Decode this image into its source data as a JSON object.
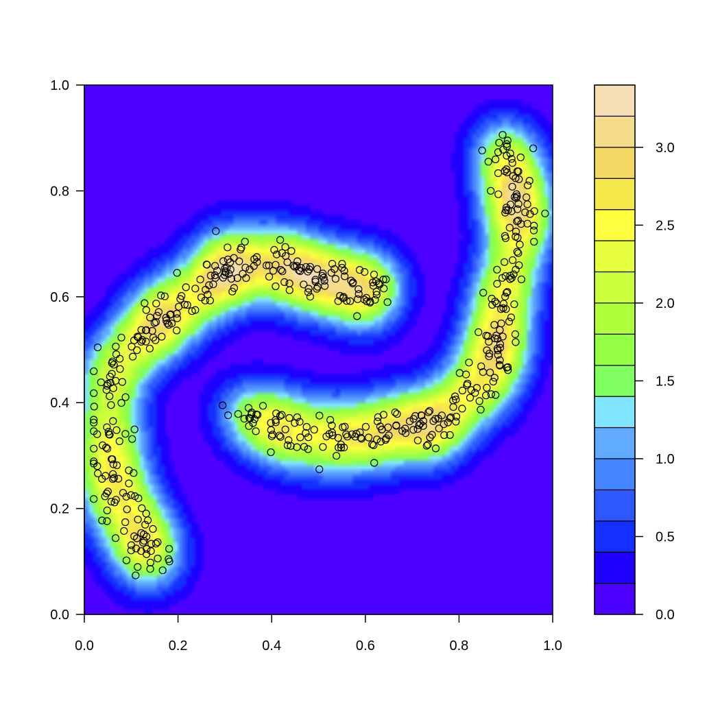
{
  "chart_data": {
    "type": "contour",
    "description_kind": "filled contour of a 2D density estimate with scatter points overlaid",
    "title": "",
    "xlabel": "",
    "ylabel": "",
    "xlim": [
      0,
      1
    ],
    "ylim": [
      0,
      1
    ],
    "x_ticks": [
      "0.0",
      "0.2",
      "0.4",
      "0.6",
      "0.8",
      "1.0"
    ],
    "y_ticks": [
      "0.0",
      "0.2",
      "0.4",
      "0.6",
      "0.8",
      "1.0"
    ],
    "x_tick_values": [
      0,
      0.2,
      0.4,
      0.6,
      0.8,
      1.0
    ],
    "y_tick_values": [
      0,
      0.2,
      0.4,
      0.6,
      0.8,
      1.0
    ],
    "colorbar": {
      "range": [
        0,
        3.4
      ],
      "breaks": [
        0,
        0.2,
        0.4,
        0.6,
        0.8,
        1.0,
        1.2,
        1.4,
        1.6,
        1.8,
        2.0,
        2.2,
        2.4,
        2.6,
        2.8,
        3.0,
        3.2,
        3.4
      ],
      "tick_labels": [
        "0.0",
        "0.5",
        "1.0",
        "1.5",
        "2.0",
        "2.5",
        "3.0"
      ],
      "tick_values": [
        0,
        0.5,
        1.0,
        1.5,
        2.0,
        2.5,
        3.0
      ],
      "colors": [
        "#4c00ff",
        "#1e00ff",
        "#1330ff",
        "#2d58ff",
        "#4585ff",
        "#60aaff",
        "#80e5ff",
        "#80ff60",
        "#95ff45",
        "#b0ff3c",
        "#cbff3b",
        "#e8ff40",
        "#ffff40",
        "#f6e94a",
        "#f3d863",
        "#f4dc8a",
        "#f5deb3"
      ]
    },
    "point_style": {
      "shape": "open circle",
      "color": "#000000"
    },
    "n_points": 560,
    "clusters": [
      {
        "name": "upper arc",
        "centerline": [
          [
            0.04,
            0.42
          ],
          [
            0.07,
            0.48
          ],
          [
            0.12,
            0.53
          ],
          [
            0.18,
            0.57
          ],
          [
            0.24,
            0.61
          ],
          [
            0.3,
            0.65
          ],
          [
            0.36,
            0.66
          ],
          [
            0.42,
            0.66
          ],
          [
            0.48,
            0.64
          ],
          [
            0.54,
            0.62
          ],
          [
            0.6,
            0.61
          ],
          [
            0.65,
            0.61
          ]
        ],
        "points": 200
      },
      {
        "name": "lower-left tail",
        "centerline": [
          [
            0.04,
            0.4
          ],
          [
            0.05,
            0.33
          ],
          [
            0.06,
            0.27
          ],
          [
            0.08,
            0.21
          ],
          [
            0.11,
            0.15
          ],
          [
            0.14,
            0.11
          ],
          [
            0.17,
            0.12
          ]
        ],
        "points": 90
      },
      {
        "name": "lower arc",
        "centerline": [
          [
            0.33,
            0.37
          ],
          [
            0.4,
            0.36
          ],
          [
            0.47,
            0.34
          ],
          [
            0.54,
            0.33
          ],
          [
            0.6,
            0.33
          ],
          [
            0.66,
            0.34
          ],
          [
            0.72,
            0.36
          ],
          [
            0.78,
            0.38
          ],
          [
            0.83,
            0.41
          ],
          [
            0.86,
            0.46
          ],
          [
            0.88,
            0.53
          ]
        ],
        "points": 175
      },
      {
        "name": "upper-right tail",
        "centerline": [
          [
            0.88,
            0.55
          ],
          [
            0.9,
            0.62
          ],
          [
            0.92,
            0.7
          ],
          [
            0.93,
            0.78
          ],
          [
            0.91,
            0.84
          ],
          [
            0.88,
            0.89
          ]
        ],
        "points": 95
      }
    ]
  }
}
